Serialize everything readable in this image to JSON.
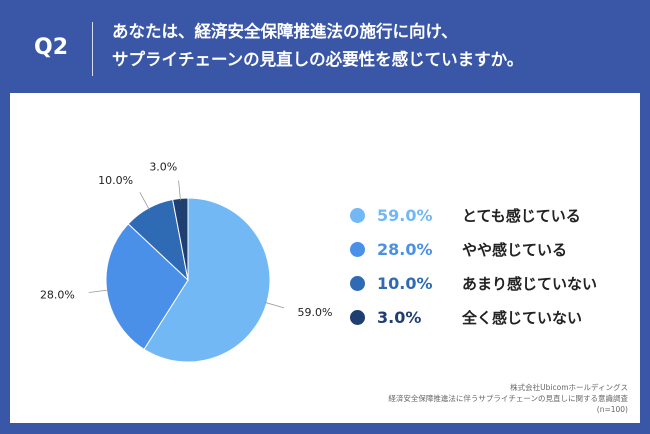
{
  "header": {
    "q_label": "Q2",
    "title_line1": "あなたは、経済安全保障推進法の施行に向け、",
    "title_line2": "サプライチェーンの見直しの必要性を感じていますか。"
  },
  "chart_data": {
    "type": "pie",
    "categories": [
      "とても感じている",
      "やや感じている",
      "あまり感じていない",
      "全く感じていない"
    ],
    "values": [
      59.0,
      28.0,
      10.0,
      3.0
    ],
    "labels": [
      "59.0%",
      "28.0%",
      "10.0%",
      "3.0%"
    ],
    "colors": [
      "#72b8f5",
      "#4a90e8",
      "#2f6bb5",
      "#1f3f70"
    ],
    "legend_position": "right",
    "title": ""
  },
  "source": {
    "line1": "株式会社Ubicomホールディングス",
    "line2": "経済安全保障推進法に伴うサプライチェーンの見直しに関する意識調査",
    "line3": "(n=100)"
  }
}
